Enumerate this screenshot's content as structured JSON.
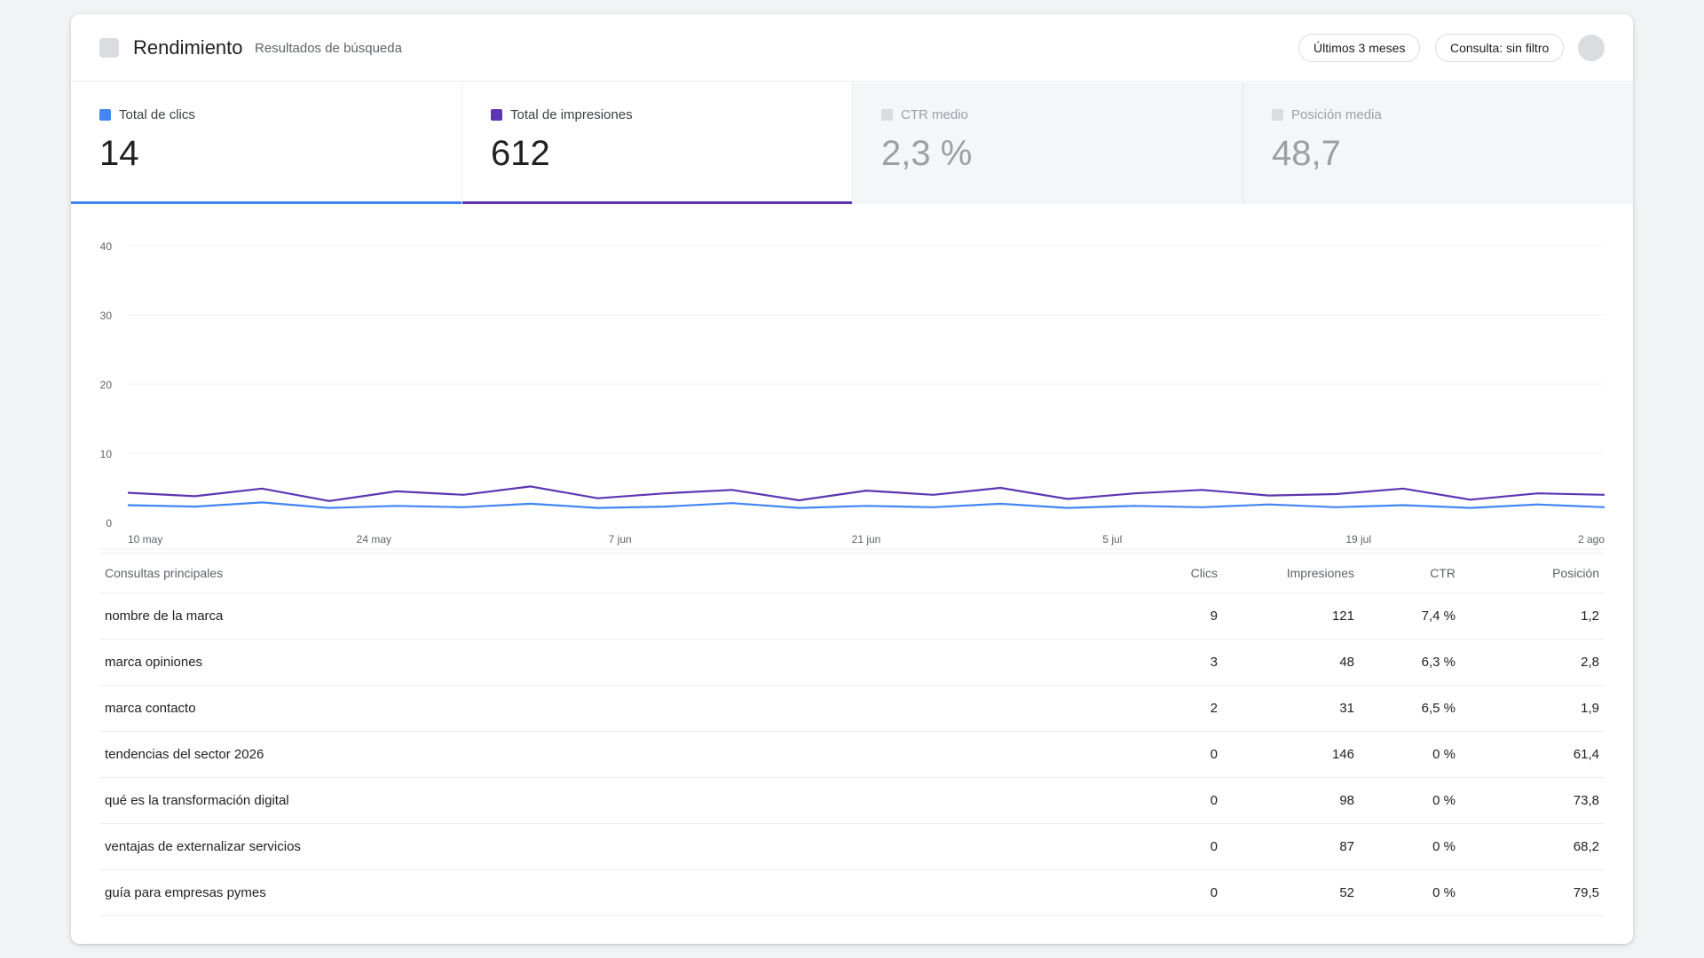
{
  "header": {
    "title": "Rendimiento",
    "subtitle": "Resultados de búsqueda",
    "range_chip": "Últimos 3 meses",
    "query_chip": "Consulta: sin filtro"
  },
  "metrics": [
    {
      "label": "Total de clics",
      "value": "14",
      "active": true,
      "color": "#4285f4"
    },
    {
      "label": "Total de impresiones",
      "value": "612",
      "active": true,
      "color": "#5e35b1"
    },
    {
      "label": "CTR medio",
      "value": "2,3 %",
      "active": false,
      "color": "#dadce0"
    },
    {
      "label": "Posición media",
      "value": "48,7",
      "active": false,
      "color": "#dadce0"
    }
  ],
  "chart_data": {
    "type": "line",
    "y_ticks": [
      "40",
      "30",
      "20",
      "10",
      "0"
    ],
    "ylim": [
      0,
      40
    ],
    "grid": true,
    "x_tick_labels": [
      "10 may",
      "24 may",
      "7 jun",
      "21 jun",
      "5 jul",
      "19 jul",
      "2 ago"
    ],
    "series": [
      {
        "color": "#5e35b1",
        "values": [
          4.3,
          3.8,
          4.9,
          3.1,
          4.5,
          4.0,
          5.2,
          3.5,
          4.2,
          4.7,
          3.2,
          4.6,
          4.0,
          5.0,
          3.4,
          4.2,
          4.7,
          3.9,
          4.1,
          4.9,
          3.3,
          4.2,
          4.0
        ]
      },
      {
        "color": "#4285f4",
        "values": [
          2.5,
          2.3,
          2.9,
          2.1,
          2.4,
          2.2,
          2.7,
          2.1,
          2.3,
          2.8,
          2.1,
          2.4,
          2.2,
          2.7,
          2.1,
          2.4,
          2.2,
          2.6,
          2.2,
          2.5,
          2.1,
          2.6,
          2.2
        ]
      }
    ]
  },
  "table": {
    "headers": {
      "query": "Consultas principales",
      "clicks": "Clics",
      "impressions": "Impresiones",
      "ctr": "CTR",
      "position": "Posición"
    },
    "rows": [
      {
        "query": "nombre de la marca",
        "clicks": "9",
        "impressions": "121",
        "ctr": "7,4 %",
        "position": "1,2"
      },
      {
        "query": "marca opiniones",
        "clicks": "3",
        "impressions": "48",
        "ctr": "6,3 %",
        "position": "2,8"
      },
      {
        "query": "marca contacto",
        "clicks": "2",
        "impressions": "31",
        "ctr": "6,5 %",
        "position": "1,9"
      },
      {
        "query": "tendencias del sector 2026",
        "clicks": "0",
        "impressions": "146",
        "ctr": "0 %",
        "position": "61,4"
      },
      {
        "query": "qué es la transformación digital",
        "clicks": "0",
        "impressions": "98",
        "ctr": "0 %",
        "position": "73,8"
      },
      {
        "query": "ventajas de externalizar servicios",
        "clicks": "0",
        "impressions": "87",
        "ctr": "0 %",
        "position": "68,2"
      },
      {
        "query": "guía para empresas pymes",
        "clicks": "0",
        "impressions": "52",
        "ctr": "0 %",
        "position": "79,5"
      }
    ]
  }
}
